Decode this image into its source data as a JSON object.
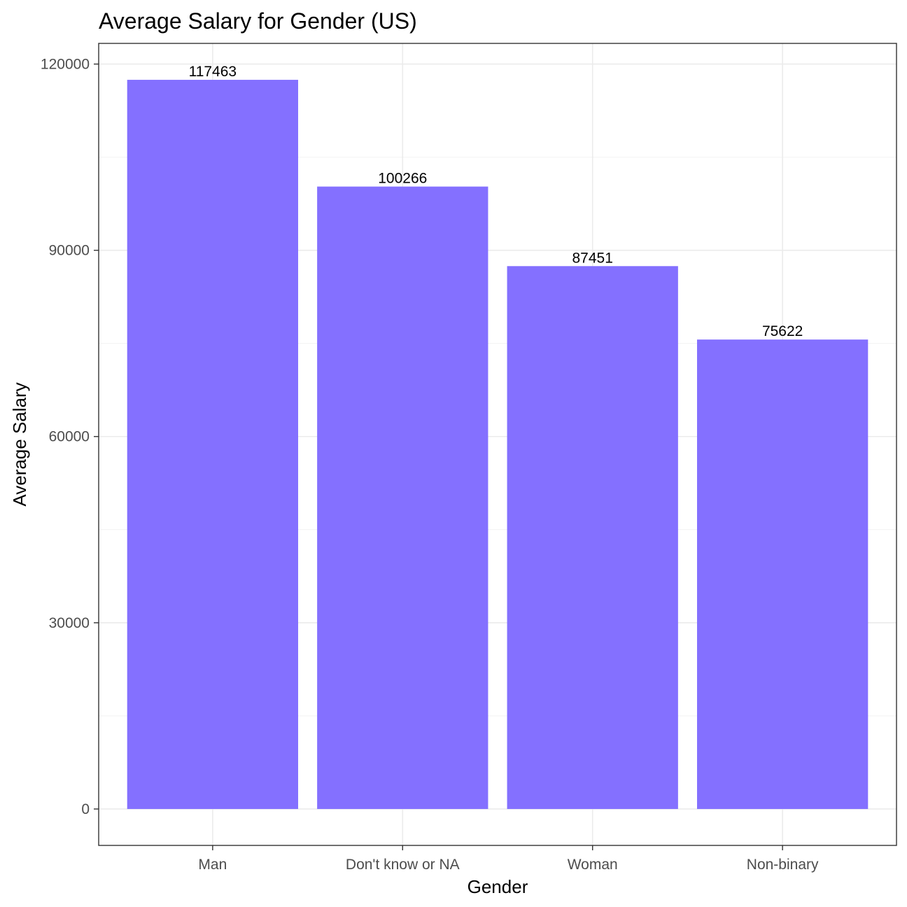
{
  "chart_data": {
    "type": "bar",
    "title": "Average Salary for Gender (US)",
    "xlabel": "Gender",
    "ylabel": "Average Salary",
    "categories": [
      "Man",
      "Don't know or NA",
      "Woman",
      "Non-binary"
    ],
    "values": [
      117463,
      100266,
      87451,
      75622
    ],
    "data_labels": [
      "117463",
      "100266",
      "87451",
      "75622"
    ],
    "y_ticks": [
      0,
      30000,
      60000,
      90000,
      120000
    ],
    "y_tick_labels": [
      "0",
      "30000",
      "60000",
      "90000",
      "120000"
    ],
    "ylim": [
      -5867,
      123330
    ],
    "grid": true,
    "legend": "none",
    "bar_color": "#8470FF"
  }
}
